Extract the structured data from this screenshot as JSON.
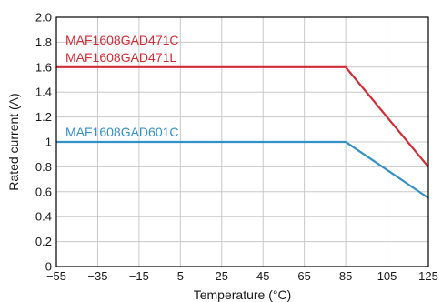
{
  "chart_data": {
    "type": "line",
    "title": "",
    "xlabel": "Temperature (°C)",
    "ylabel": "Rated current (A)",
    "xlim": [
      -55,
      125
    ],
    "ylim": [
      0,
      2.0
    ],
    "x_ticks": [
      -55,
      -35,
      -15,
      5,
      25,
      45,
      65,
      85,
      105,
      125
    ],
    "x_tick_labels": [
      "−55",
      "−35",
      "−15",
      "5",
      "25",
      "45",
      "65",
      "85",
      "105",
      "125"
    ],
    "y_ticks": [
      0,
      0.2,
      0.4,
      0.6,
      0.8,
      1,
      1.2,
      1.4,
      1.6,
      1.8,
      2.0
    ],
    "y_tick_labels": [
      "0",
      "0.2",
      "0.4",
      "0.6",
      "0.8",
      "1",
      "1.2",
      "1.4",
      "1.6",
      "1.8",
      "2.0"
    ],
    "grid": true,
    "legend": "inline labels",
    "series": [
      {
        "labels": [
          "MAF1608GAD471C",
          "MAF1608GAD471L"
        ],
        "color": "#d42b35",
        "x": [
          -55,
          85,
          125
        ],
        "y": [
          1.6,
          1.6,
          0.8
        ]
      },
      {
        "labels": [
          "MAF1608GAD601C"
        ],
        "color": "#3590c8",
        "x": [
          -55,
          85,
          125
        ],
        "y": [
          1.0,
          1.0,
          0.55
        ]
      }
    ]
  }
}
